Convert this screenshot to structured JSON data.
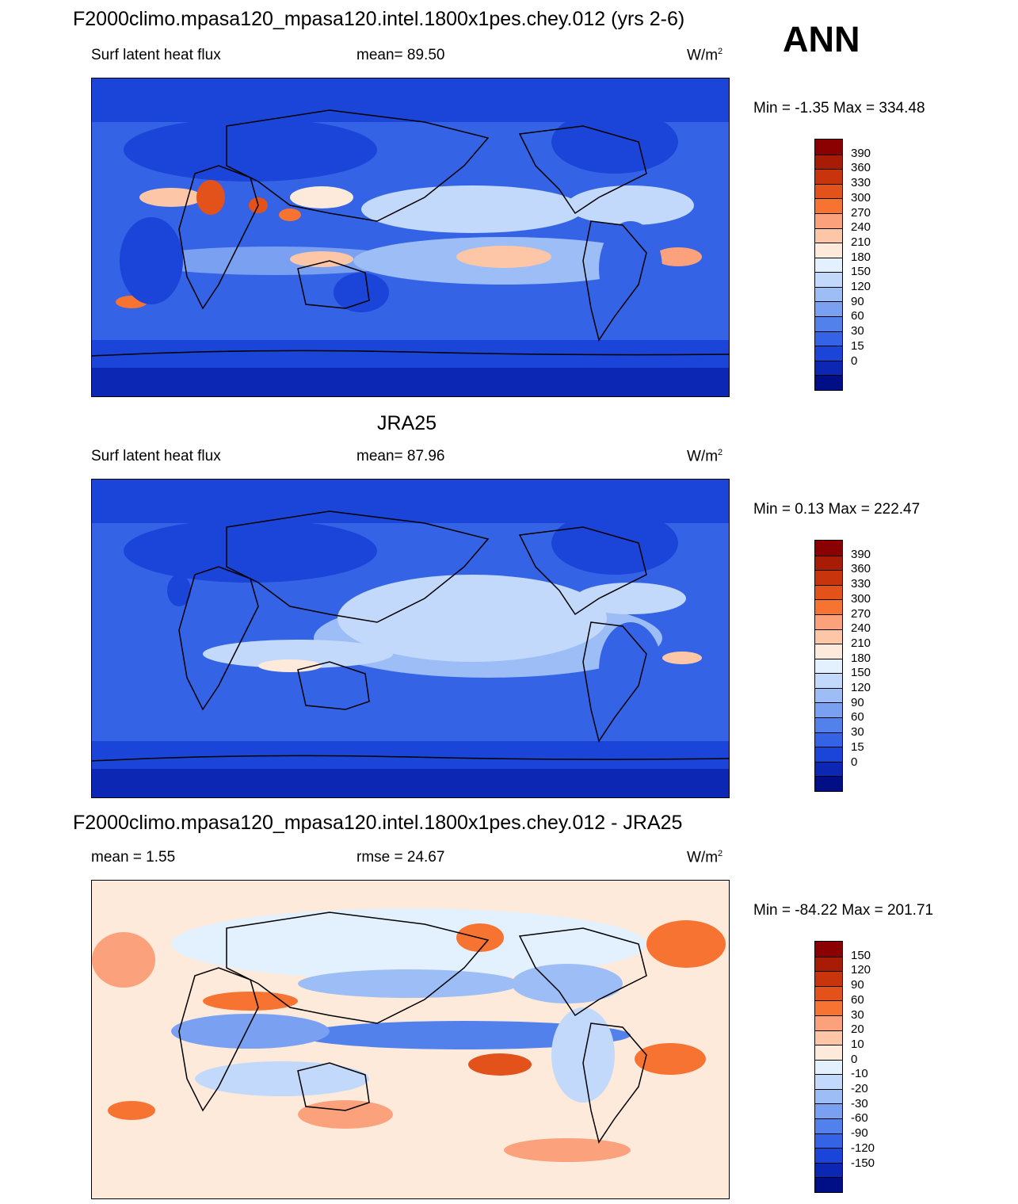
{
  "season": "ANN",
  "panels": [
    {
      "title": "F2000climo.mpasa120_mpasa120.intel.1800x1pes.chey.012 (yrs 2-6)",
      "left_label": "Surf latent heat flux",
      "center_label": "mean=  89.50",
      "units": "W/m",
      "units_sup": "2",
      "minmax": "Min =  -1.35 Max = 334.48",
      "colorbar": {
        "colors": [
          "#8b0000",
          "#a81c06",
          "#c8340b",
          "#e2521a",
          "#f77332",
          "#fba17b",
          "#fdc6a6",
          "#feeadb",
          "#e3f0fe",
          "#c2d9fb",
          "#9dbdf6",
          "#7aa1f1",
          "#5381ec",
          "#3563e5",
          "#1b44d8",
          "#0b27b4",
          "#010f86"
        ],
        "labels": [
          "390",
          "360",
          "330",
          "300",
          "270",
          "240",
          "210",
          "180",
          "150",
          "120",
          "90",
          "60",
          "30",
          "15",
          "0"
        ]
      }
    },
    {
      "title": "JRA25",
      "left_label": "Surf latent heat flux",
      "center_label": "mean=  87.96",
      "units": "W/m",
      "units_sup": "2",
      "minmax": "Min =   0.13 Max = 222.47",
      "colorbar": {
        "colors": [
          "#8b0000",
          "#a81c06",
          "#c8340b",
          "#e2521a",
          "#f77332",
          "#fba17b",
          "#fdc6a6",
          "#feeadb",
          "#e3f0fe",
          "#c2d9fb",
          "#9dbdf6",
          "#7aa1f1",
          "#5381ec",
          "#3563e5",
          "#1b44d8",
          "#0b27b4",
          "#010f86"
        ],
        "labels": [
          "390",
          "360",
          "330",
          "300",
          "270",
          "240",
          "210",
          "180",
          "150",
          "120",
          "90",
          "60",
          "30",
          "15",
          "0"
        ]
      }
    },
    {
      "title": "F2000climo.mpasa120_mpasa120.intel.1800x1pes.chey.012 - JRA25",
      "left_label": "mean =   1.55",
      "center_label": "rmse =  24.67",
      "units": "W/m",
      "units_sup": "2",
      "minmax": "Min = -84.22 Max = 201.71",
      "colorbar": {
        "colors": [
          "#8b0000",
          "#a81c06",
          "#c8340b",
          "#e2521a",
          "#f77332",
          "#fba17b",
          "#fdc6a6",
          "#feeadb",
          "#e3f0fe",
          "#c2d9fb",
          "#9dbdf6",
          "#7aa1f1",
          "#5381ec",
          "#3563e5",
          "#1b44d8",
          "#0b27b4",
          "#010f86"
        ],
        "labels": [
          "150",
          "120",
          "90",
          "60",
          "30",
          "20",
          "10",
          "0",
          "-10",
          "-20",
          "-30",
          "-60",
          "-90",
          "-120",
          "-150"
        ]
      }
    }
  ]
}
